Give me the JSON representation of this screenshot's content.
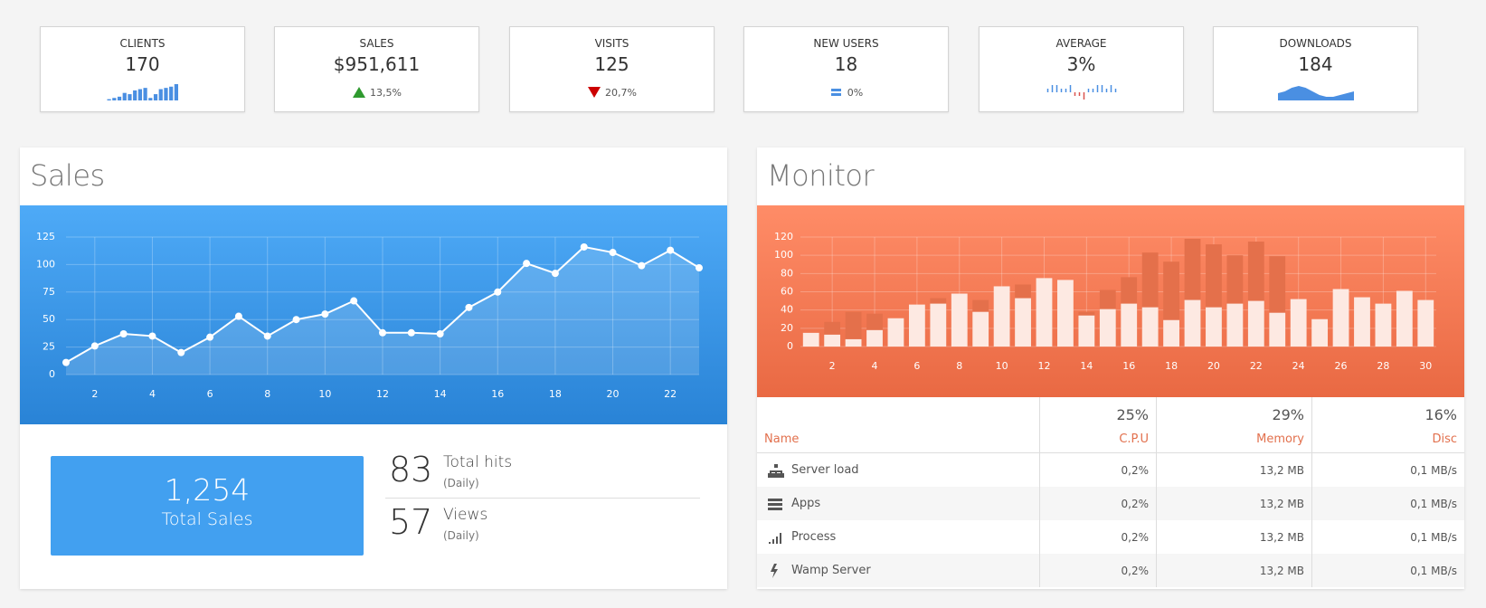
{
  "stats": [
    {
      "label": "CLIENTS",
      "value": "170",
      "sparkline": {
        "type": "bar",
        "color": "#4a8fe2",
        "values": [
          1,
          2,
          3,
          6,
          5,
          8,
          9,
          10,
          2,
          5,
          9,
          10,
          11,
          13
        ]
      }
    },
    {
      "label": "SALES",
      "value": "$951,611",
      "trend": "up",
      "change": "13,5%"
    },
    {
      "label": "VISITS",
      "value": "125",
      "trend": "down",
      "change": "20,7%"
    },
    {
      "label": "NEW USERS",
      "value": "18",
      "trend": "flat",
      "change": "0%"
    },
    {
      "label": "AVERAGE",
      "value": "3%",
      "sparkline": {
        "type": "tristate",
        "color": "#4a8fe2",
        "negative_color": "#d9534f",
        "values": [
          1,
          2,
          2,
          1,
          1,
          2,
          -1,
          -1,
          -2,
          1,
          1,
          2,
          2,
          1,
          2,
          1
        ]
      }
    },
    {
      "label": "DOWNLOADS",
      "value": "184",
      "sparkline": {
        "type": "area",
        "color": "#4a8fe2",
        "values": [
          4,
          5,
          7,
          8,
          7,
          5,
          3,
          2,
          2,
          3,
          4,
          5
        ]
      }
    }
  ],
  "sales": {
    "title": "Sales",
    "chart": {
      "type": "line",
      "color": "#ffffff",
      "grid": true,
      "x": [
        1,
        2,
        3,
        4,
        5,
        6,
        7,
        8,
        9,
        10,
        11,
        12,
        13,
        14,
        15,
        16,
        17,
        18,
        19,
        20,
        21,
        22,
        23
      ],
      "values": [
        11,
        26,
        37,
        35,
        20,
        34,
        53,
        35,
        50,
        55,
        67,
        38,
        38,
        37,
        61,
        75,
        101,
        92,
        116,
        111,
        99,
        113,
        97
      ],
      "xlim": [
        1,
        23
      ],
      "xticks": [
        2,
        4,
        6,
        8,
        10,
        12,
        14,
        16,
        18,
        20,
        22
      ],
      "ylim": [
        0,
        125
      ],
      "yticks": [
        0,
        25,
        50,
        75,
        100,
        125
      ]
    },
    "total": {
      "value": "1,254",
      "label": "Total Sales"
    },
    "metrics": [
      {
        "value": "83",
        "label": "Total hits",
        "period": "(Daily)"
      },
      {
        "value": "57",
        "label": "Views",
        "period": "(Daily)"
      }
    ]
  },
  "monitor": {
    "title": "Monitor",
    "chart": {
      "type": "bar",
      "grid": true,
      "categories": [
        null,
        "2",
        null,
        "4",
        null,
        "6",
        null,
        "8",
        null,
        "10",
        null,
        "12",
        null,
        "14",
        null,
        "16",
        null,
        "18",
        null,
        "20",
        null,
        "22",
        null,
        "24",
        null,
        "26",
        null,
        "28",
        null,
        "30"
      ],
      "series": [
        {
          "color": "#e4704b",
          "values": [
            null,
            27,
            38,
            36,
            null,
            null,
            53,
            null,
            51,
            null,
            68,
            null,
            null,
            38,
            62,
            76,
            103,
            93,
            118,
            112,
            100,
            115,
            99,
            null,
            null,
            null,
            null,
            null,
            null,
            null
          ]
        },
        {
          "color": "#fde9e2",
          "values": [
            15,
            13,
            8,
            18,
            31,
            46,
            47,
            58,
            38,
            66,
            53,
            75,
            73,
            34,
            41,
            47,
            43,
            29,
            51,
            43,
            47,
            50,
            37,
            52,
            30,
            63,
            54,
            47,
            61,
            51
          ]
        }
      ],
      "ylim": [
        0,
        120
      ],
      "yticks": [
        0,
        20,
        40,
        60,
        80,
        100,
        120
      ]
    },
    "table": {
      "columns": [
        {
          "name": "Name"
        },
        {
          "value": "25%",
          "name": "C.P.U"
        },
        {
          "value": "29%",
          "name": "Memory"
        },
        {
          "value": "16%",
          "name": "Disc"
        }
      ],
      "rows": [
        [
          "Server load",
          "0,2%",
          "13,2 MB",
          "0,1 MB/s"
        ],
        [
          "Apps",
          "0,2%",
          "13,2 MB",
          "0,1 MB/s"
        ],
        [
          "Process",
          "0,2%",
          "13,2 MB",
          "0,1 MB/s"
        ],
        [
          "Wamp Server",
          "0,2%",
          "13,2 MB",
          "0,1 MB/s"
        ]
      ]
    }
  }
}
